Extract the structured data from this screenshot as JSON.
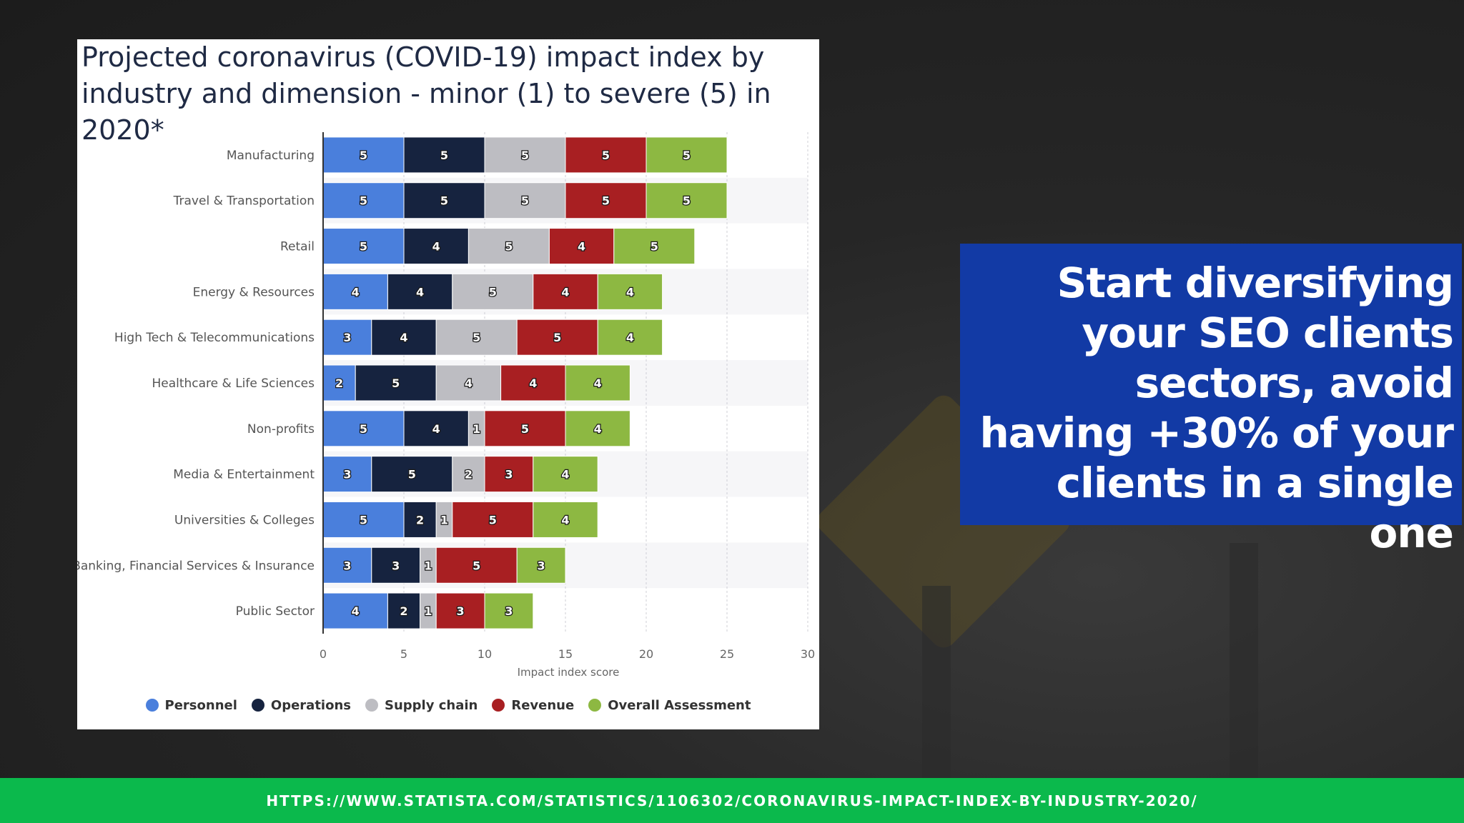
{
  "callout": {
    "text": "Start diversifying your SEO clients sectors, avoid having +30% of your clients in a single one"
  },
  "footer": {
    "url": "HTTPS://WWW.STATISTA.COM/STATISTICS/1106302/CORONAVIRUS-IMPACT-INDEX-BY-INDUSTRY-2020/"
  },
  "chart_data": {
    "type": "bar",
    "orientation": "horizontal",
    "stacked": true,
    "title": "Projected coronavirus (COVID-19) impact index by industry and dimension - minor (1) to severe (5) in 2020*",
    "xlabel": "Impact index score",
    "ylabel": "",
    "xlim": [
      0,
      30
    ],
    "xticks": [
      0,
      5,
      10,
      15,
      20,
      25,
      30
    ],
    "grid": true,
    "legend_position": "bottom",
    "categories": [
      "Manufacturing",
      "Travel & Transportation",
      "Retail",
      "Energy & Resources",
      "High Tech & Telecommunications",
      "Healthcare & Life Sciences",
      "Non-profits",
      "Media & Entertainment",
      "Universities & Colleges",
      "Banking, Financial Services & Insurance",
      "Public Sector"
    ],
    "series": [
      {
        "name": "Personnel",
        "color": "#4a7fdc",
        "values": [
          5,
          5,
          5,
          4,
          3,
          2,
          5,
          3,
          5,
          3,
          4
        ]
      },
      {
        "name": "Operations",
        "color": "#16233f",
        "values": [
          5,
          5,
          4,
          4,
          4,
          5,
          4,
          5,
          2,
          3,
          2
        ]
      },
      {
        "name": "Supply chain",
        "color": "#bdbdc2",
        "values": [
          5,
          5,
          5,
          5,
          5,
          4,
          1,
          2,
          1,
          1,
          1
        ]
      },
      {
        "name": "Revenue",
        "color": "#a81f22",
        "values": [
          5,
          5,
          4,
          4,
          5,
          4,
          5,
          3,
          5,
          5,
          3
        ]
      },
      {
        "name": "Overall Assessment",
        "color": "#8db842",
        "values": [
          5,
          5,
          5,
          4,
          4,
          4,
          4,
          4,
          4,
          3,
          3
        ]
      }
    ]
  }
}
